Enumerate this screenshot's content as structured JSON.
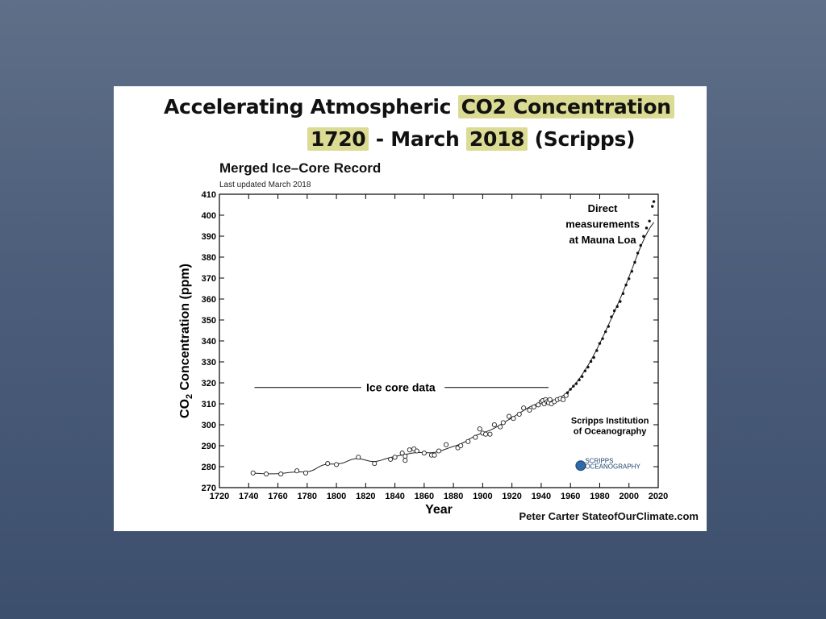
{
  "slide": {
    "title_line1_prefix": "Accelerating Atmospheric ",
    "title_line1_highlight": "CO2 Concentration",
    "title_line2_year_start": "1720",
    "title_line2_mid": " - March ",
    "title_line2_year_end": "2018",
    "title_line2_suffix": " (Scripps)",
    "highlight_color": "#c8c85a",
    "footer": "Peter Carter StateofOurClimate.com"
  },
  "chart_data": {
    "type": "scatter",
    "title": "Merged Ice–Core Record",
    "subtitle": "Last updated March 2018",
    "xlabel": "Year",
    "ylabel": "Concentration (ppm)",
    "ylabel_prefix": "CO",
    "ylabel_sub": "2",
    "xlim": [
      1720,
      2020
    ],
    "ylim": [
      270,
      410
    ],
    "xticks": [
      1720,
      1740,
      1760,
      1780,
      1800,
      1820,
      1840,
      1860,
      1880,
      1900,
      1920,
      1940,
      1960,
      1980,
      2000,
      2020
    ],
    "yticks": [
      270,
      280,
      290,
      300,
      310,
      320,
      330,
      340,
      350,
      360,
      370,
      380,
      390,
      400,
      410
    ],
    "grid": false,
    "annotations": {
      "ice_core": "Ice core data",
      "direct_line1": "Direct",
      "direct_line2": "measurements",
      "direct_line3": "at Mauna  Loa",
      "institution_line1": "Scripps Institution",
      "institution_line2": "of Oceanography",
      "logo_text1": "SCRIPPS",
      "logo_text2": "OCEANOGRAPHY"
    },
    "series": [
      {
        "marker": "open-circle",
        "x": [
          1743,
          1752,
          1762,
          1773,
          1779,
          1794,
          1800,
          1815,
          1826,
          1837,
          1840,
          1845,
          1847,
          1847,
          1850,
          1853,
          1855,
          1860,
          1865,
          1867,
          1870,
          1875,
          1883,
          1885,
          1890,
          1895,
          1898,
          1900,
          1902,
          1905,
          1908,
          1912,
          1914,
          1918,
          1921,
          1925,
          1928,
          1932,
          1935,
          1938,
          1940,
          1941,
          1942,
          1943,
          1944,
          1945,
          1946,
          1947,
          1949,
          1951,
          1953,
          1955,
          1957
        ],
        "y": [
          277,
          276.5,
          276.5,
          278,
          277,
          281.5,
          281,
          284.5,
          281.5,
          283.5,
          284.5,
          286.5,
          285,
          283,
          288,
          288.5,
          287.5,
          286.5,
          285.5,
          285.5,
          287.5,
          290.5,
          289,
          290,
          292,
          294,
          298,
          296,
          295.5,
          295.5,
          300,
          299,
          301,
          304,
          303,
          305,
          308,
          307,
          308.5,
          309.5,
          311,
          311.5,
          310,
          312,
          311,
          310.5,
          312,
          310,
          311,
          312,
          312.5,
          312,
          314
        ]
      },
      {
        "marker": "dot",
        "x": [
          1958,
          1960,
          1962,
          1964,
          1966,
          1968,
          1970,
          1972,
          1974,
          1976,
          1978,
          1980,
          1982,
          1984,
          1986,
          1988,
          1990,
          1992,
          1994,
          1996,
          1998,
          2000,
          2002,
          2004,
          2006,
          2008,
          2010,
          2012,
          2014,
          2016,
          2017
        ],
        "y": [
          315.3,
          316.9,
          318.4,
          319.6,
          321.4,
          323,
          325.7,
          327.5,
          330.2,
          332.1,
          335.4,
          338.8,
          341.1,
          344.4,
          346.9,
          351.5,
          354.4,
          356.4,
          358.8,
          362.6,
          366.7,
          369.7,
          373.2,
          377.5,
          381.9,
          385.6,
          389.9,
          393.9,
          397.2,
          404.2,
          406.5
        ]
      }
    ]
  }
}
